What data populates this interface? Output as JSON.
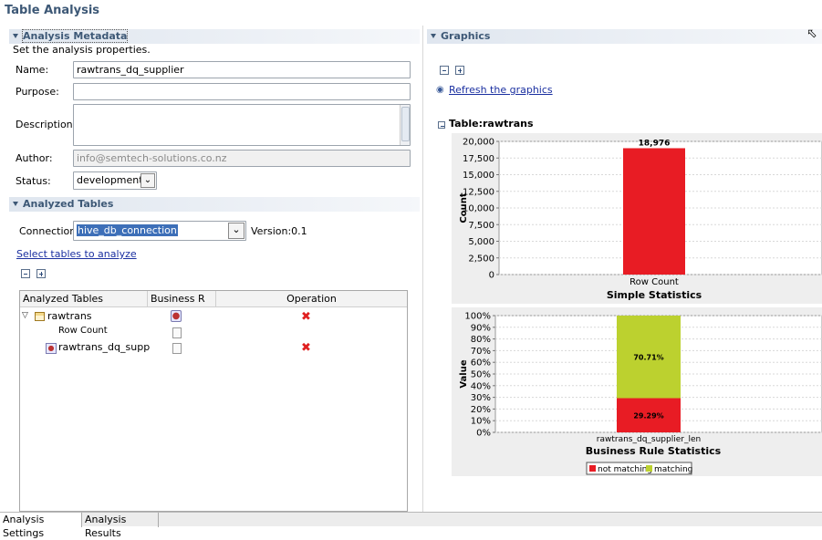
{
  "page_title": "Table Analysis",
  "metadata": {
    "header": "Analysis Metadata",
    "subtitle": "Set the analysis properties.",
    "name_label": "Name:",
    "name_value": "rawtrans_dq_supplier",
    "purpose_label": "Purpose:",
    "purpose_value": "",
    "description_label": "Description:",
    "description_value": "",
    "author_label": "Author:",
    "author_value": "info@semtech-solutions.co.nz",
    "status_label": "Status:",
    "status_value": "development"
  },
  "tables": {
    "header": "Analyzed Tables",
    "connection_label": "Connection:",
    "connection_value": "hive_db_connection",
    "version_label": "Version:0.1",
    "select_link": "Select tables to analyze",
    "columns": [
      "Analyzed Tables",
      "Business R",
      "Operation"
    ],
    "rows": [
      {
        "label": "rawtrans"
      },
      {
        "label": "Row Count"
      },
      {
        "label": "rawtrans_dq_supplie"
      }
    ]
  },
  "graphics": {
    "header": "Graphics",
    "refresh_link": "Refresh the graphics",
    "table_title": "Table:rawtrans"
  },
  "chart_data": [
    {
      "type": "bar",
      "title": "Simple Statistics",
      "xlabel": "",
      "ylabel": "Count",
      "categories": [
        "Row Count"
      ],
      "values": [
        18976
      ],
      "value_labels": [
        "18,976"
      ],
      "ylim": [
        0,
        20000
      ],
      "ticks": [
        "0",
        "2,500",
        "5,000",
        "7,500",
        "10,000",
        "12,500",
        "15,000",
        "17,500",
        "20,000"
      ],
      "colors": [
        "#e81c24"
      ],
      "grid": true
    },
    {
      "type": "bar",
      "stacked": true,
      "title": "Business Rule Statistics",
      "xlabel": "",
      "ylabel": "Value",
      "categories": [
        "rawtrans_dq_supplier_len"
      ],
      "series": [
        {
          "name": "not matching",
          "values": [
            29.29
          ],
          "label": "29.29%",
          "color": "#e81c24"
        },
        {
          "name": "matching",
          "values": [
            70.71
          ],
          "label": "70.71%",
          "color": "#bcd12f"
        }
      ],
      "ylim": [
        0,
        100
      ],
      "ticks": [
        "0%",
        "10%",
        "20%",
        "30%",
        "40%",
        "50%",
        "60%",
        "70%",
        "80%",
        "90%",
        "100%"
      ],
      "legend_position": "bottom",
      "grid": true
    }
  ],
  "bottom_tabs": [
    "Analysis Settings",
    "Analysis Results"
  ],
  "colors": {
    "header_text": "#3d5876",
    "link": "#1a2fa0",
    "red": "#e81c24",
    "green": "#bcd12f"
  }
}
